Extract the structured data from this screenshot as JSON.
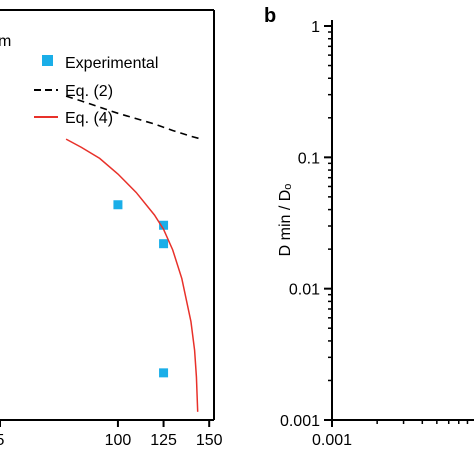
{
  "panel_a": {
    "partial_title": "m",
    "legend": [
      {
        "label": "Experimental",
        "kind": "marker",
        "color": "#1aaee8"
      },
      {
        "label": "Eq. (2)",
        "kind": "dashed",
        "color": "#000000"
      },
      {
        "label": "Eq. (4)",
        "kind": "solid",
        "color": "#e8312a"
      }
    ]
  },
  "panel_b": {
    "label": "b",
    "ylabel": "D min / Dₒ"
  },
  "chart_data": [
    {
      "type": "scatter",
      "xlim": [
        71.6,
        150
      ],
      "ylim": [
        0,
        1
      ],
      "xticks": [
        100,
        125,
        150
      ],
      "xtick_labels": [
        "100",
        "125",
        "150"
      ],
      "partial_tick_label": "5",
      "grid": false,
      "legend_position": "top-right",
      "series": [
        {
          "name": "Experimental",
          "kind": "scatter",
          "color": "#1aaee8",
          "points": [
            [
              100,
              0.525
            ],
            [
              125,
              0.475
            ],
            [
              125,
              0.43
            ],
            [
              125,
              0.115
            ]
          ]
        },
        {
          "name": "Eq. (2)",
          "kind": "dashed-line",
          "color": "#000000",
          "points": [
            [
              71.6,
              0.79
            ],
            [
              80,
              0.778
            ],
            [
              90,
              0.763
            ],
            [
              100,
              0.748
            ],
            [
              110,
              0.735
            ],
            [
              120,
              0.722
            ],
            [
              130,
              0.706
            ],
            [
              140,
              0.692
            ],
            [
              145,
              0.686
            ]
          ]
        },
        {
          "name": "Eq. (4)",
          "kind": "line",
          "color": "#e8312a",
          "points": [
            [
              71.6,
              0.685
            ],
            [
              80,
              0.665
            ],
            [
              90,
              0.638
            ],
            [
              100,
              0.6
            ],
            [
              110,
              0.555
            ],
            [
              120,
              0.5
            ],
            [
              125,
              0.465
            ],
            [
              130,
              0.415
            ],
            [
              135,
              0.345
            ],
            [
              140,
              0.24
            ],
            [
              142,
              0.17
            ],
            [
              143,
              0.105
            ],
            [
              143.7,
              0.02
            ]
          ]
        }
      ]
    },
    {
      "type": "line",
      "y_scale": "log",
      "ylim": [
        0.001,
        1
      ],
      "yticks": [
        0.001,
        0.01,
        0.1,
        1
      ],
      "ytick_labels": [
        "0.001",
        "0.01",
        "0.1",
        "1"
      ],
      "xlim": [
        0.001,
        1
      ],
      "xticks": [
        0.001
      ],
      "xtick_labels": [
        "0.001"
      ],
      "grid": false,
      "series": []
    }
  ]
}
